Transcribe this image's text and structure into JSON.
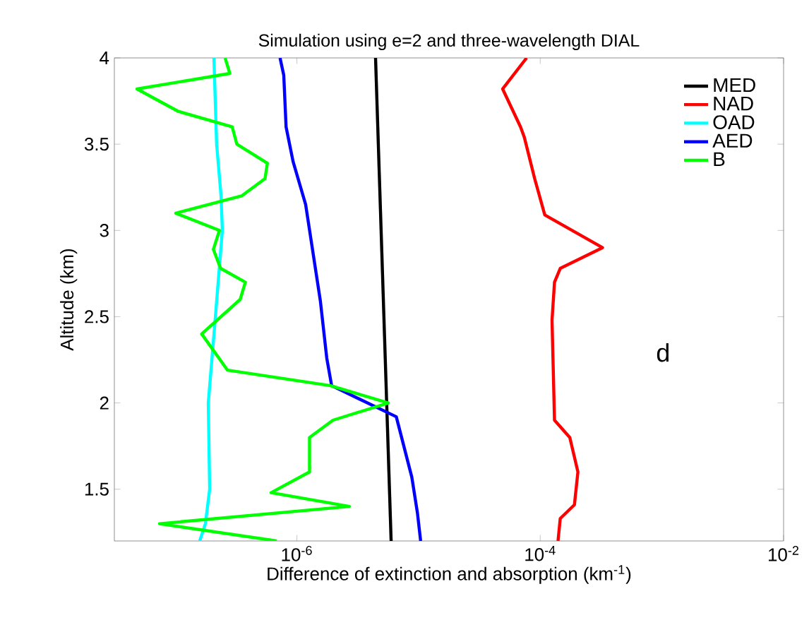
{
  "chart_data": {
    "type": "line",
    "title": "Simulation using e=2 and three-wavelength DIAL",
    "xlabel": "Difference of extinction and absorption (km$^{-1}$)",
    "ylabel": "Altitude (km)",
    "log": "x",
    "legend": "top right",
    "grid": false,
    "marker": "none",
    "line_style": "solid",
    "xlim": [
      3.16e-08,
      0.01
    ],
    "ylim": [
      1.2,
      4
    ],
    "xticks": [
      {
        "value": 1e-06,
        "label": "10$^{-6}$"
      },
      {
        "value": 0.0001,
        "label": "10$^{-4}$"
      },
      {
        "value": 0.01,
        "label": "10$^{-2}$"
      }
    ],
    "yticks": [
      {
        "value": 1.5,
        "label": "1.5"
      },
      2,
      {
        "value": 2.5,
        "label": "2.5"
      },
      3,
      {
        "value": 3.5,
        "label": "3.5"
      },
      4
    ],
    "annotations": [
      "d"
    ],
    "series": [
      {
        "name": "MED",
        "color": "#000000",
        "x": [
          4.43e-06,
          5.95e-06
        ],
        "values": [
          4,
          1.2
        ]
      },
      {
        "name": "NAD",
        "color": "#ff0000",
        "x": [
          7.73e-05,
          4.91e-05,
          6.89e-05,
          7.4e-05,
          9e-05,
          0.000109,
          0.000325,
          0.000146,
          0.000131,
          0.000125,
          0.000131,
          0.000175,
          0.000204,
          0.000191,
          0.000146,
          0.00014
        ],
        "values": [
          4,
          3.82,
          3.6,
          3.54,
          3.3,
          3.09,
          2.9,
          2.78,
          2.7,
          2.48,
          1.9,
          1.8,
          1.6,
          1.41,
          1.33,
          1.2
        ]
      },
      {
        "name": "OAD",
        "color": "#00ffff",
        "x": [
          2.08e-07,
          2.19e-07,
          2.38e-07,
          2.44e-07,
          2.14e-07,
          1.87e-07,
          1.92e-07,
          1.77e-07,
          1.59e-07
        ],
        "values": [
          4,
          3.5,
          3.2,
          3,
          2.5,
          2,
          1.5,
          1.3,
          1.2
        ]
      },
      {
        "name": "AED",
        "color": "#0000ff",
        "x": [
          7.27e-07,
          7.8e-07,
          8.15e-07,
          9.3e-07,
          1.18e-06,
          1.56e-06,
          1.76e-06,
          1.93e-06,
          6.56e-06,
          8.8e-06,
          9.8e-06,
          1.04e-05
        ],
        "values": [
          4,
          3.9,
          3.6,
          3.4,
          3.15,
          2.59,
          2.26,
          2.1,
          1.92,
          1.57,
          1.36,
          1.2
        ]
      },
      {
        "name": "B",
        "color": "#00ff00",
        "x": [
          2.57e-07,
          2.81e-07,
          4.85e-08,
          1.06e-07,
          2.94e-07,
          3.21e-07,
          5.72e-07,
          5.47e-07,
          3.51e-07,
          1.01e-07,
          2.31e-07,
          2.06e-07,
          2.36e-07,
          3.77e-07,
          3.42e-07,
          1.65e-07,
          2.69e-07,
          1.89e-06,
          5.64e-06,
          1.98e-06,
          1.27e-06,
          1.27e-06,
          6.14e-07,
          2.7e-06,
          7.43e-08,
          6.83e-07
        ],
        "values": [
          4,
          3.91,
          3.82,
          3.69,
          3.6,
          3.5,
          3.39,
          3.3,
          3.2,
          3.1,
          3,
          2.89,
          2.78,
          2.7,
          2.6,
          2.4,
          2.19,
          2.1,
          2,
          1.9,
          1.8,
          1.6,
          1.48,
          1.4,
          1.3,
          1.2
        ]
      }
    ]
  }
}
